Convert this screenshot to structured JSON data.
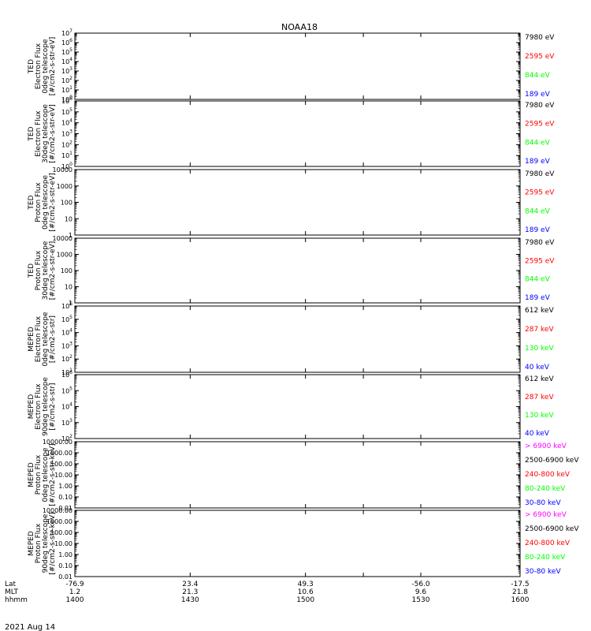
{
  "title": "NOAA18",
  "date_label": "2021 Aug 14",
  "colors": {
    "black": "#000000",
    "red": "#ff0000",
    "green": "#00ff00",
    "blue": "#0000ff",
    "magenta": "#ff00ff"
  },
  "bottom_axis": {
    "rows": [
      {
        "label": "Lat",
        "values": [
          "-76.9",
          "23.4",
          "49.3",
          "",
          "-56.0",
          "-17.5"
        ]
      },
      {
        "label": "MLT",
        "values": [
          "1.2",
          "21.3",
          "10.6",
          "",
          "9.6",
          "21.8"
        ]
      },
      {
        "label": "hhmm",
        "values": [
          "1400",
          "1430",
          "1500",
          "",
          "1530",
          "1600"
        ]
      }
    ],
    "time_ticks": [
      1400,
      1430,
      1500,
      1515,
      1530,
      1600
    ]
  },
  "chart_data": [
    {
      "type": "line",
      "ylabel": [
        "TED",
        "Electron Flux",
        "0deg telescope",
        "[#/cm2-s-str-eV]"
      ],
      "ylog": true,
      "ylim_exp": [
        0,
        7
      ],
      "tick_style": "exp",
      "legend": [
        {
          "text": "7980 eV",
          "color": "#000000"
        },
        {
          "text": "2595 eV",
          "color": "#ff0000"
        },
        {
          "text": "844 eV",
          "color": "#00ff00"
        },
        {
          "text": "189 eV",
          "color": "#0000ff"
        }
      ]
    },
    {
      "type": "line",
      "ylabel": [
        "TED",
        "Electron Flux",
        "30deg telescope",
        "[#/cm2-s-str-eV]"
      ],
      "ylog": true,
      "ylim_exp": [
        0,
        6
      ],
      "tick_style": "exp",
      "legend": [
        {
          "text": "7980 eV",
          "color": "#000000"
        },
        {
          "text": "2595 eV",
          "color": "#ff0000"
        },
        {
          "text": "844 eV",
          "color": "#00ff00"
        },
        {
          "text": "189 eV",
          "color": "#0000ff"
        }
      ]
    },
    {
      "type": "line",
      "ylabel": [
        "TED",
        "Proton Flux",
        "0deg telescope",
        "[#/cm2-s-str-eV]"
      ],
      "ylog": true,
      "ylim_exp": [
        0,
        4
      ],
      "tick_style": "plain",
      "tick_labels": [
        "1",
        "10",
        "100",
        "1000",
        "10000"
      ],
      "legend": [
        {
          "text": "7980 eV",
          "color": "#000000"
        },
        {
          "text": "2595 eV",
          "color": "#ff0000"
        },
        {
          "text": "844 eV",
          "color": "#00ff00"
        },
        {
          "text": "189 eV",
          "color": "#0000ff"
        }
      ]
    },
    {
      "type": "line",
      "ylabel": [
        "TED",
        "Proton Flux",
        "30deg telescope",
        "[#/cm2-s-str-eV]"
      ],
      "ylog": true,
      "ylim_exp": [
        0,
        4
      ],
      "tick_style": "plain",
      "tick_labels": [
        "1",
        "10",
        "100",
        "1000",
        "10000"
      ],
      "legend": [
        {
          "text": "7980 eV",
          "color": "#000000"
        },
        {
          "text": "2595 eV",
          "color": "#ff0000"
        },
        {
          "text": "844 eV",
          "color": "#00ff00"
        },
        {
          "text": "189 eV",
          "color": "#0000ff"
        }
      ]
    },
    {
      "type": "line",
      "ylabel": [
        "MEPED",
        "Electron Flux",
        "0deg telescope",
        "[#/cm2-s-str]"
      ],
      "ylog": true,
      "ylim_exp": [
        1,
        6
      ],
      "tick_style": "exp",
      "legend": [
        {
          "text": "612 keV",
          "color": "#000000"
        },
        {
          "text": "287 keV",
          "color": "#ff0000"
        },
        {
          "text": "130 keV",
          "color": "#00ff00"
        },
        {
          "text": "40 keV",
          "color": "#0000ff"
        }
      ]
    },
    {
      "type": "line",
      "ylabel": [
        "MEPED",
        "Electron Flux",
        "90deg telescope",
        "[#/cm2-s-str]"
      ],
      "ylog": true,
      "ylim_exp": [
        2,
        6
      ],
      "tick_style": "exp",
      "legend": [
        {
          "text": "612 keV",
          "color": "#000000"
        },
        {
          "text": "287 keV",
          "color": "#ff0000"
        },
        {
          "text": "130 keV",
          "color": "#00ff00"
        },
        {
          "text": "40 keV",
          "color": "#0000ff"
        }
      ]
    },
    {
      "type": "line",
      "ylabel": [
        "MEPED",
        "Proton Flux",
        "0deg telescope",
        "[#/cm2-s-str-keV]"
      ],
      "ylog": true,
      "ylim_exp": [
        -2,
        4
      ],
      "tick_style": "plain",
      "tick_labels": [
        "0.01",
        "0.10",
        "1.00",
        "10.00",
        "100.00",
        "1000.00",
        "10000.00"
      ],
      "legend": [
        {
          "text": "> 6900 keV",
          "color": "#ff00ff"
        },
        {
          "text": "2500-6900 keV",
          "color": "#000000"
        },
        {
          "text": "240-800 keV",
          "color": "#ff0000"
        },
        {
          "text": "80-240 keV",
          "color": "#00ff00"
        },
        {
          "text": "30-80 keV",
          "color": "#0000ff"
        }
      ]
    },
    {
      "type": "line",
      "ylabel": [
        "MEPED",
        "Proton Flux",
        "90deg telescope",
        "[#/cm2-s-str-keV]"
      ],
      "ylog": true,
      "ylim_exp": [
        -2,
        4
      ],
      "tick_style": "plain",
      "tick_labels": [
        "0.01",
        "0.10",
        "1.00",
        "10.00",
        "100.00",
        "1000.00",
        "10000.00"
      ],
      "legend": [
        {
          "text": "> 6900 keV",
          "color": "#ff00ff"
        },
        {
          "text": "2500-6900 keV",
          "color": "#000000"
        },
        {
          "text": "240-800 keV",
          "color": "#ff0000"
        },
        {
          "text": "80-240 keV",
          "color": "#00ff00"
        },
        {
          "text": "30-80 keV",
          "color": "#0000ff"
        }
      ]
    }
  ]
}
